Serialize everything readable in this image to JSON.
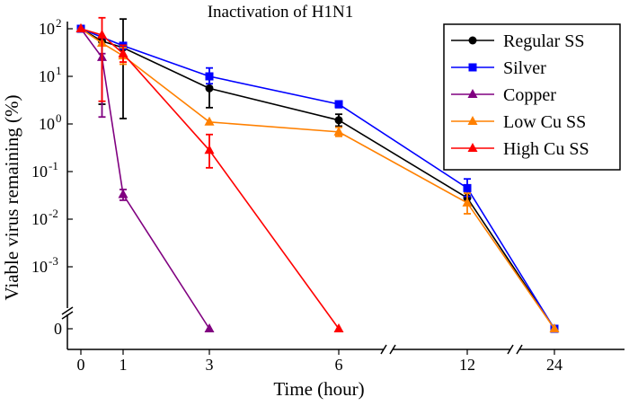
{
  "chart_data": {
    "type": "line",
    "title": "Inactivation of H1N1",
    "xlabel": "Time (hour)",
    "ylabel": "Viable virus remaining (%)",
    "y_scale": "log with broken axis to zero",
    "x_axis": "broken between 6 and 12 and between 12 and 24",
    "x_ticks": [
      "0",
      "1",
      "3",
      "6",
      "12",
      "24"
    ],
    "y_ticks": [
      {
        "base": "10",
        "exp": "2"
      },
      {
        "base": "10",
        "exp": "1"
      },
      {
        "base": "10",
        "exp": "0"
      },
      {
        "base": "10",
        "exp": "-1"
      },
      {
        "base": "10",
        "exp": "-2"
      },
      {
        "base": "10",
        "exp": "-3"
      },
      {
        "base": "0",
        "exp": ""
      }
    ],
    "legend_position": "top-right",
    "grid": false,
    "series": [
      {
        "name": "Regular SS",
        "color": "#000000",
        "marker": "circle",
        "points": [
          {
            "x": 0,
            "y": 100
          },
          {
            "x": 0.5,
            "y": 55,
            "err": [
              2.6,
              60
            ]
          },
          {
            "x": 1,
            "y": 40,
            "err": [
              1.3,
              160
            ]
          },
          {
            "x": 3,
            "y": 5.6,
            "err": [
              2.2,
              9
            ]
          },
          {
            "x": 6,
            "y": 1.2,
            "err": [
              0.9,
              1.6
            ]
          },
          {
            "x": 12,
            "y": 0.028,
            "err": [
              0.02,
              0.035
            ]
          },
          {
            "x": 24,
            "y": 0
          }
        ]
      },
      {
        "name": "Silver",
        "color": "#0000ff",
        "marker": "square",
        "points": [
          {
            "x": 0,
            "y": 100
          },
          {
            "x": 1,
            "y": 44
          },
          {
            "x": 3,
            "y": 10,
            "err": [
              7,
              15
            ]
          },
          {
            "x": 6,
            "y": 2.6,
            "err": [
              2.2,
              3
            ]
          },
          {
            "x": 12,
            "y": 0.045,
            "err": [
              0.03,
              0.07
            ]
          },
          {
            "x": 24,
            "y": 0
          }
        ]
      },
      {
        "name": "Copper",
        "color": "#800080",
        "marker": "triangle",
        "points": [
          {
            "x": 0,
            "y": 100
          },
          {
            "x": 0.5,
            "y": 25,
            "err": [
              1.4,
              30
            ]
          },
          {
            "x": 1,
            "y": 0.033,
            "err": [
              0.025,
              0.042
            ]
          },
          {
            "x": 3,
            "y": 0
          }
        ]
      },
      {
        "name": "Low Cu SS",
        "color": "#ff8000",
        "marker": "triangle",
        "points": [
          {
            "x": 0,
            "y": 100
          },
          {
            "x": 0.5,
            "y": 50
          },
          {
            "x": 1,
            "y": 27,
            "err": [
              18,
              40
            ]
          },
          {
            "x": 3,
            "y": 1.1
          },
          {
            "x": 6,
            "y": 0.68,
            "err": [
              0.55,
              0.85
            ]
          },
          {
            "x": 12,
            "y": 0.022,
            "err": [
              0.013,
              0.035
            ]
          },
          {
            "x": 24,
            "y": 0
          }
        ]
      },
      {
        "name": "High Cu SS",
        "color": "#ff0000",
        "marker": "triangle",
        "points": [
          {
            "x": 0,
            "y": 100
          },
          {
            "x": 0.5,
            "y": 74,
            "err": [
              3,
              170
            ]
          },
          {
            "x": 1,
            "y": 30,
            "err": [
              20,
              45
            ]
          },
          {
            "x": 3,
            "y": 0.28,
            "err": [
              0.12,
              0.6
            ]
          },
          {
            "x": 6,
            "y": 0
          }
        ]
      }
    ]
  }
}
